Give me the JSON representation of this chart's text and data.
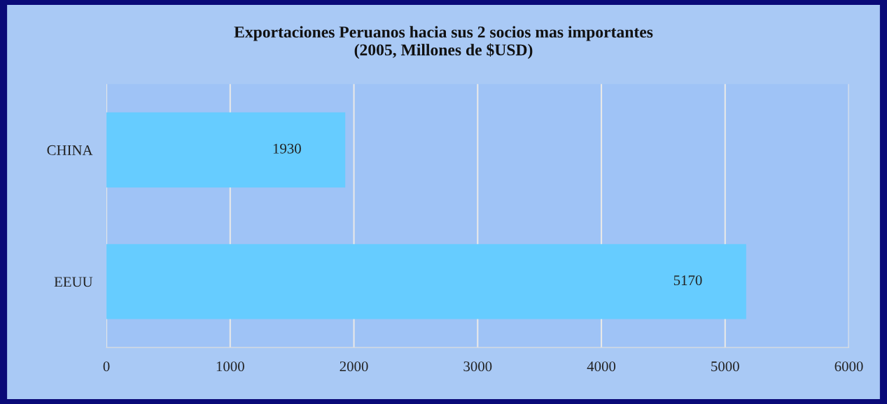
{
  "chart_data": {
    "type": "bar",
    "orientation": "horizontal",
    "title": "Exportaciones Peruanos hacia sus 2 socios mas importantes\n(2005, Millones de $USD)",
    "categories": [
      "CHINA",
      "EEUU"
    ],
    "values": [
      1930,
      5170
    ],
    "color": "#66ccff",
    "xlim": [
      0,
      6000
    ],
    "xticks": [
      0,
      1000,
      2000,
      3000,
      4000,
      5000,
      6000
    ],
    "grid": "x",
    "data_labels": true
  }
}
